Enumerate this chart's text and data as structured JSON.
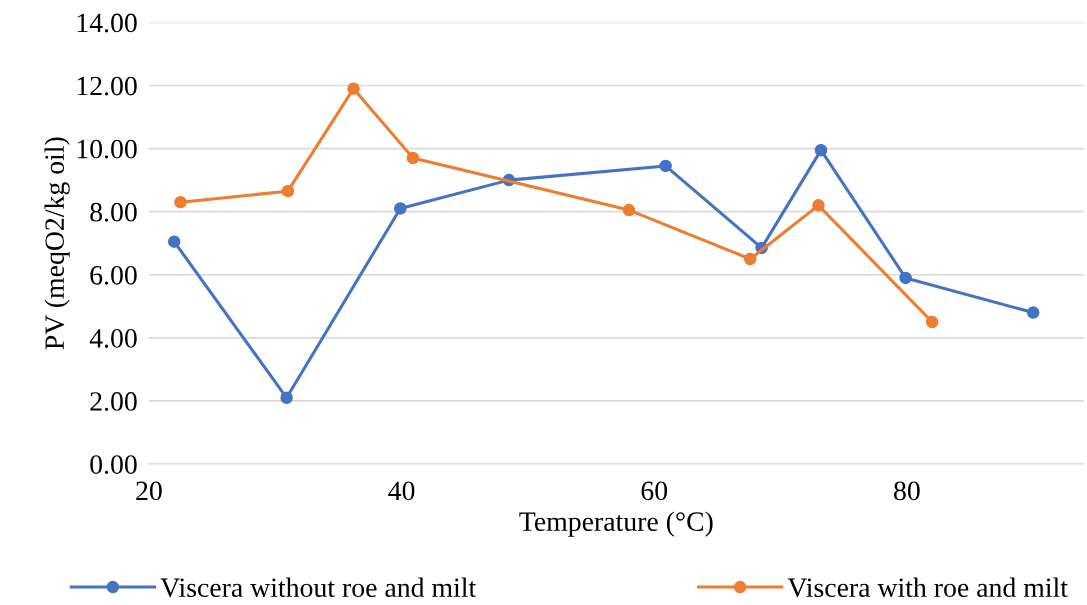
{
  "chart_data": {
    "type": "line",
    "xlabel": "Temperature (°C)",
    "ylabel": "PV (meqO2/kg oil)",
    "series": [
      {
        "name": "Viscera without roe and milt",
        "color": "#4472c4",
        "x": [
          22.0,
          30.9,
          39.9,
          48.5,
          60.9,
          68.5,
          73.2,
          79.9,
          90.0
        ],
        "values": [
          7.05,
          2.1,
          8.1,
          9.0,
          9.45,
          6.85,
          9.95,
          5.9,
          4.8
        ]
      },
      {
        "name": "Viscera with roe and milt",
        "color": "#ed7d31",
        "x": [
          22.5,
          31.0,
          36.2,
          40.9,
          58.0,
          67.6,
          73.0,
          82.0
        ],
        "values": [
          8.3,
          8.65,
          11.9,
          9.7,
          8.05,
          6.5,
          8.2,
          4.5
        ]
      }
    ],
    "xlim": [
      20,
      94
    ],
    "xticks": [
      20,
      40,
      60,
      80
    ],
    "ylim": [
      0,
      14
    ],
    "yticks": [
      {
        "value": 0,
        "label": "0.00"
      },
      {
        "value": 2,
        "label": "2.00"
      },
      {
        "value": 4,
        "label": "4.00"
      },
      {
        "value": 6,
        "label": "6.00"
      },
      {
        "value": 8,
        "label": "8.00"
      },
      {
        "value": 10,
        "label": "10.00"
      },
      {
        "value": 12,
        "label": "12.00"
      },
      {
        "value": 14,
        "label": "14.00"
      }
    ],
    "grid": "y",
    "legend": "bottom",
    "marker": "circle",
    "line_style": "solid"
  }
}
